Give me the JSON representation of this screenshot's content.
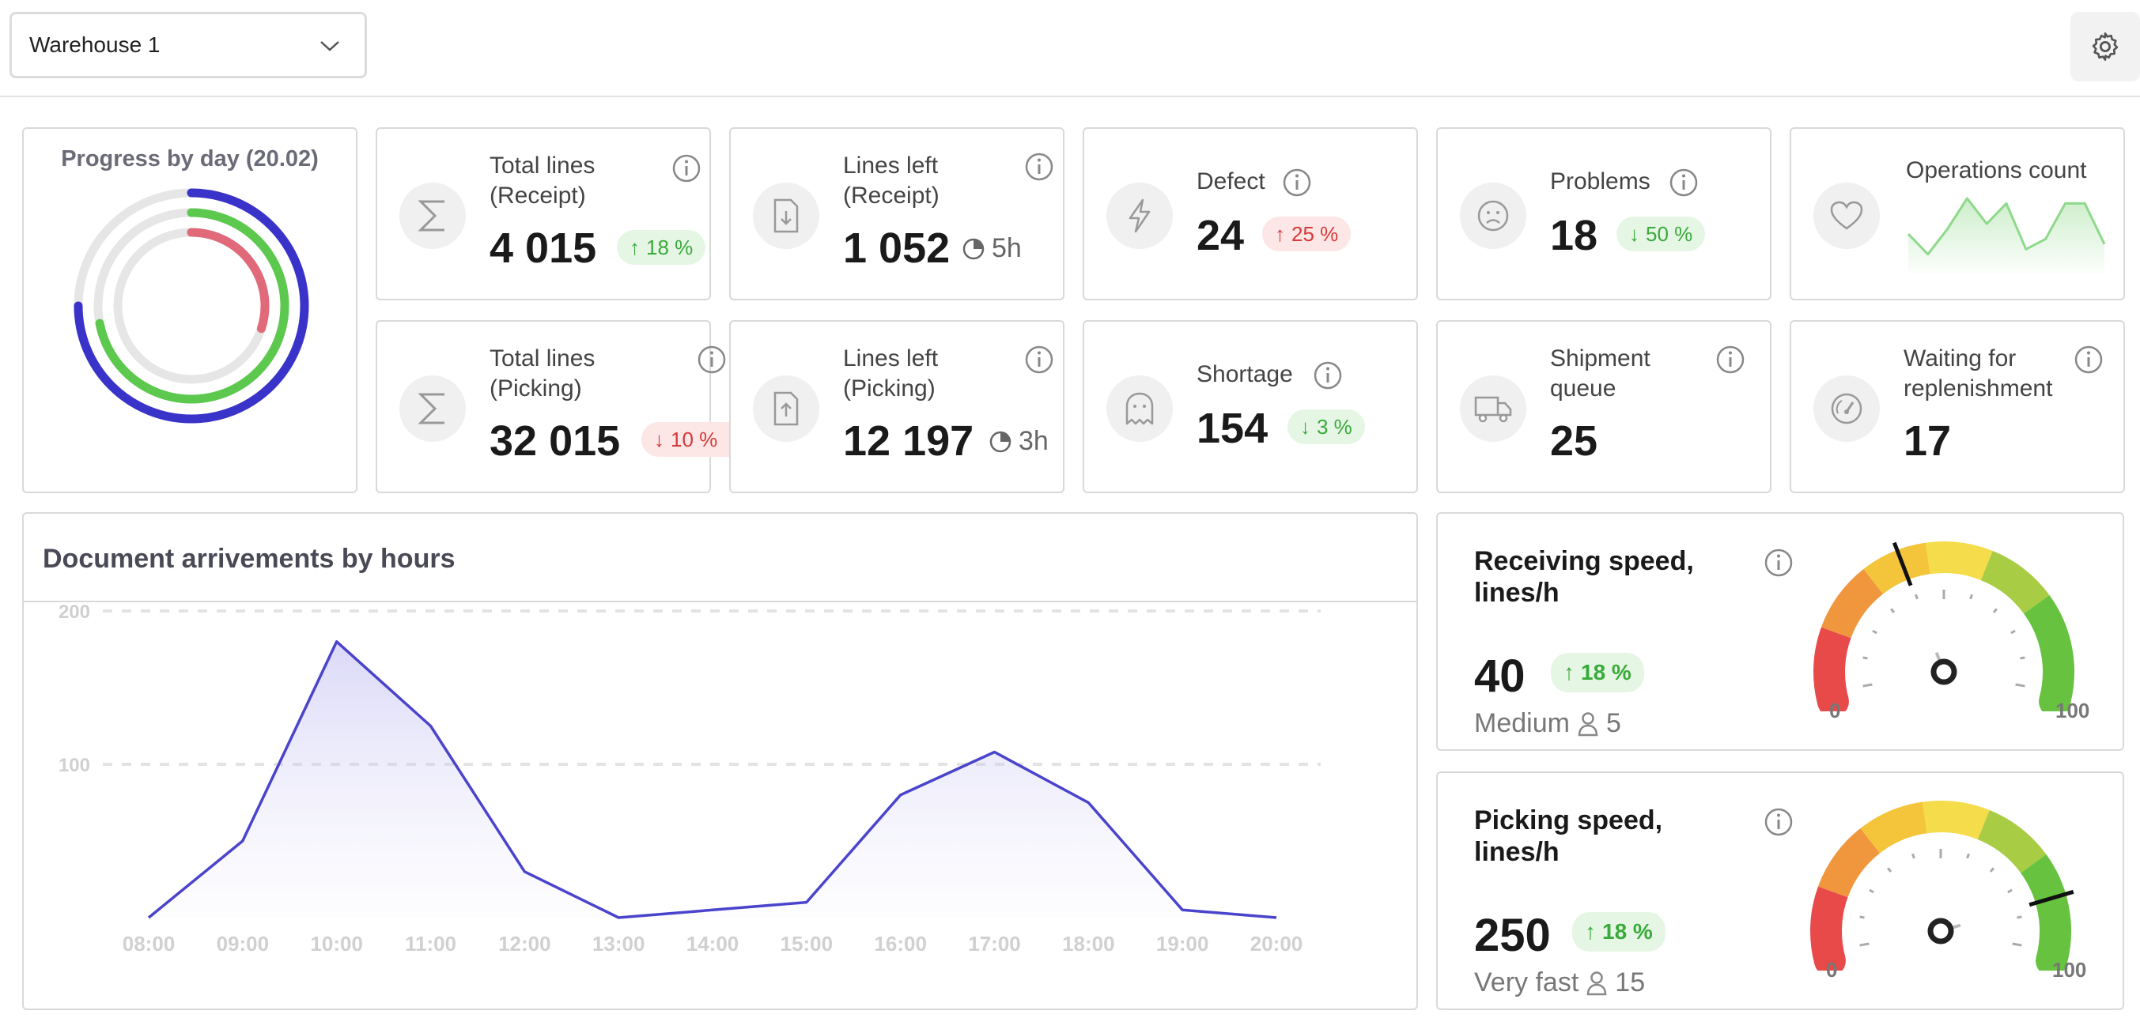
{
  "header": {
    "warehouse_selected": "Warehouse 1"
  },
  "progress": {
    "title": "Progress by day (20.02)",
    "rings": [
      {
        "color": "#3a33c9",
        "fraction": 0.75
      },
      {
        "color": "#5cc94e",
        "fraction": 0.72
      },
      {
        "color": "#e0697a",
        "fraction": 0.3
      }
    ]
  },
  "kpis": {
    "total_receipt": {
      "label1": "Total lines",
      "label2": "(Receipt)",
      "value": "4 015",
      "badge": "18 %"
    },
    "lines_left_receipt": {
      "label1": "Lines left",
      "label2": "(Receipt)",
      "value": "1 052",
      "eta": "5h"
    },
    "defect": {
      "label": "Defect",
      "value": "24",
      "badge": "25 %"
    },
    "problems": {
      "label": "Problems",
      "value": "18",
      "badge": "50 %"
    },
    "operations": {
      "label": "Operations count",
      "spark": [
        7,
        3,
        8,
        14,
        9,
        13,
        4,
        6,
        13,
        13,
        5
      ]
    },
    "total_picking": {
      "label1": "Total lines",
      "label2": "(Picking)",
      "value": "32 015",
      "badge": "10 %"
    },
    "lines_left_picking": {
      "label1": "Lines left",
      "label2": "(Picking)",
      "value": "12 197",
      "eta": "3h"
    },
    "shortage": {
      "label": "Shortage",
      "value": "154",
      "badge": "3 %"
    },
    "shipment_queue": {
      "label1": "Shipment",
      "label2": "queue",
      "value": "25"
    },
    "waiting_replenishment": {
      "label1": "Waiting for",
      "label2": "replenishment",
      "value": "17"
    }
  },
  "chart_data": {
    "type": "area",
    "title": "Document arrivements by hours",
    "categories": [
      "08:00",
      "09:00",
      "10:00",
      "11:00",
      "12:00",
      "13:00",
      "14:00",
      "15:00",
      "16:00",
      "17:00",
      "18:00",
      "19:00",
      "20:00"
    ],
    "values": [
      0,
      50,
      180,
      125,
      30,
      0,
      5,
      10,
      80,
      108,
      75,
      5,
      0
    ],
    "ylim": [
      0,
      200
    ],
    "yticks": [
      "100",
      "200"
    ],
    "grid": true,
    "line_color": "#4a44cc"
  },
  "receiving": {
    "title1": "Receiving speed,",
    "title2": "lines/h",
    "value": "40",
    "badge": "18 %",
    "level": "Medium",
    "workers": "5",
    "gauge_value": 40,
    "gauge_min": "0",
    "gauge_max": "100"
  },
  "picking": {
    "title1": "Picking speed,",
    "title2": "lines/h",
    "value": "250",
    "badge": "18 %",
    "level": "Very fast",
    "workers": "15",
    "gauge_value": 85,
    "gauge_min": "0",
    "gauge_max": "100"
  }
}
